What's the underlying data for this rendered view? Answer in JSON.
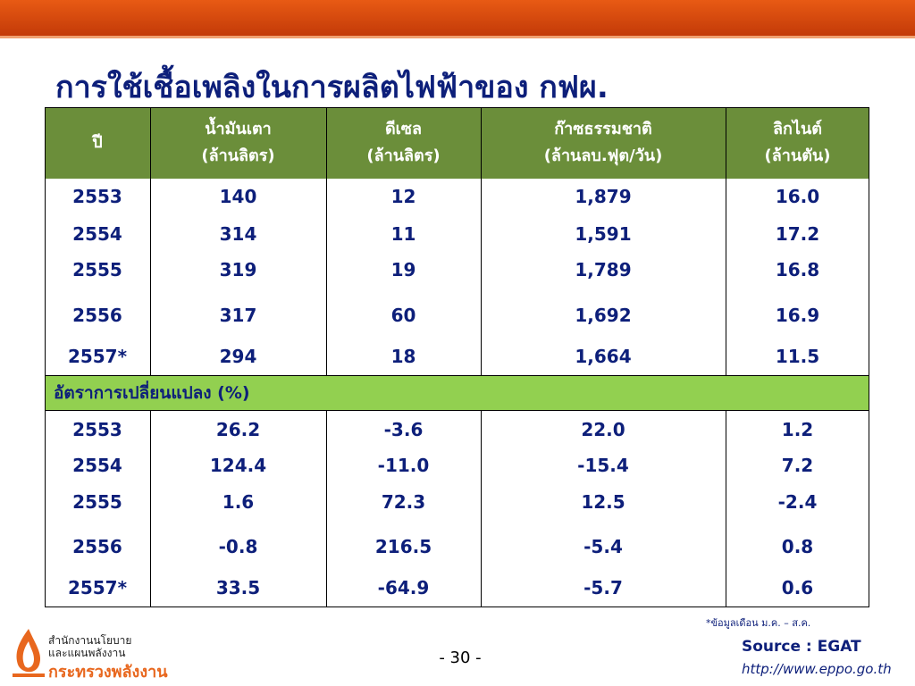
{
  "title": "การใช้เชื้อเพลิงในการผลิตไฟฟ้าของ กฟผ.",
  "table": {
    "header": [
      {
        "name": "ปี"
      },
      {
        "name": "น้ำมันเตา",
        "unit": "(ล้านลิตร)"
      },
      {
        "name": "ดีเซล",
        "unit": "(ล้านลิตร)"
      },
      {
        "name": "ก๊าซธรรมชาติ",
        "unit": "(ล้านลบ.ฟุต/วัน)"
      },
      {
        "name": "ลิกไนต์",
        "unit": "(ล้านตัน)"
      }
    ],
    "rows": [
      [
        "2553",
        "140",
        "12",
        "1,879",
        "16.0"
      ],
      [
        "2554",
        "314",
        "11",
        "1,591",
        "17.2"
      ],
      [
        "2555",
        "319",
        "19",
        "1,789",
        "16.8"
      ],
      [
        "2556",
        "317",
        "60",
        "1,692",
        "16.9"
      ],
      [
        "2557*",
        "294",
        "18",
        "1,664",
        "11.5"
      ]
    ],
    "section_label": "อัตราการเปลี่ยนแปลง (%)",
    "change_rows": [
      [
        "2553",
        "26.2",
        "-3.6",
        "22.0",
        "1.2"
      ],
      [
        "2554",
        "124.4",
        "-11.0",
        "-15.4",
        "7.2"
      ],
      [
        "2555",
        "1.6",
        "72.3",
        "12.5",
        "-2.4"
      ],
      [
        "2556",
        "-0.8",
        "216.5",
        "-5.4",
        "0.8"
      ],
      [
        "2557*",
        "33.5",
        "-64.9",
        "-5.7",
        "0.6"
      ]
    ]
  },
  "footer": {
    "org_line1": "สำนักงานนโยบาย",
    "org_line2": "และแผนพลังงาน",
    "ministry": "กระทรวงพลังงาน",
    "page_number": "- 30 -",
    "note": "*ข้อมูลเดือน ม.ค. – ส.ค.",
    "source": "Source : EGAT",
    "url": "http://www.eppo.go.th"
  }
}
